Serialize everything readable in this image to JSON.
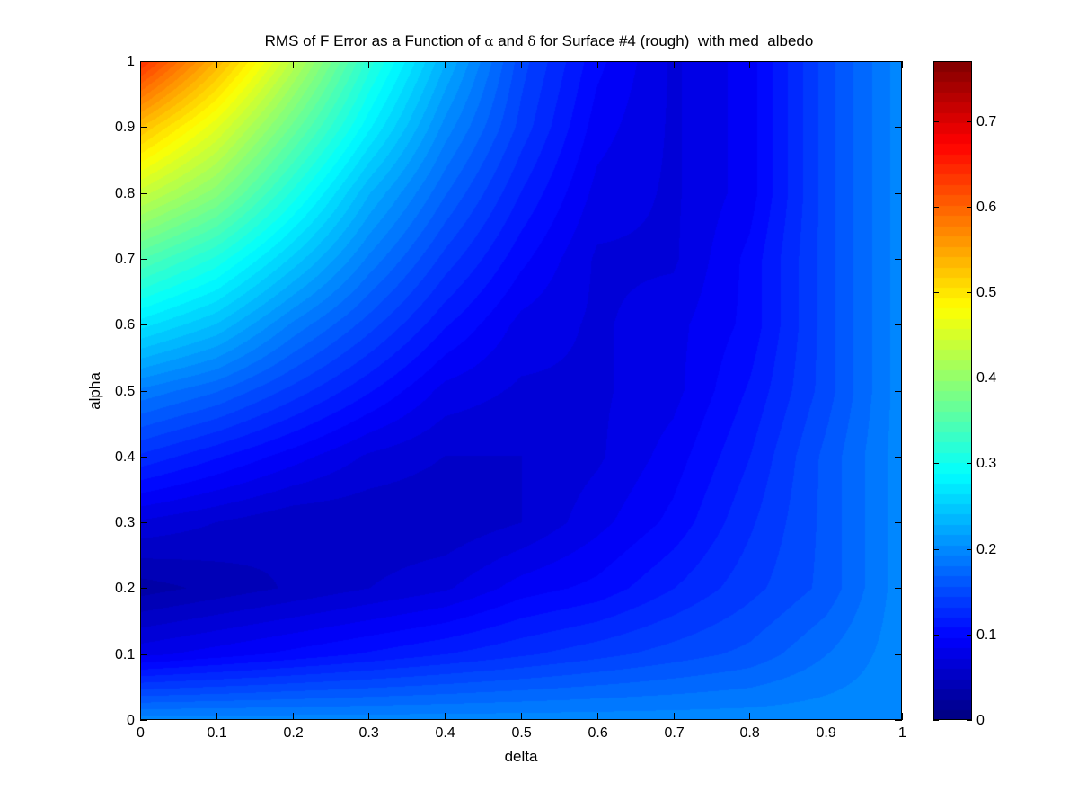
{
  "chart_data": {
    "type": "heatmap",
    "title_parts": [
      "RMS of F Error as a Function of ",
      "α",
      " and ",
      "δ",
      " for Surface #4 (rough)  with med  albedo"
    ],
    "xlabel": "delta",
    "ylabel": "alpha",
    "xlim": [
      0,
      1
    ],
    "ylim": [
      0,
      1
    ],
    "x_ticks": [
      "0",
      "0.1",
      "0.2",
      "0.3",
      "0.4",
      "0.5",
      "0.6",
      "0.7",
      "0.8",
      "0.9",
      "1"
    ],
    "y_ticks": [
      "0",
      "0.1",
      "0.2",
      "0.3",
      "0.4",
      "0.5",
      "0.6",
      "0.7",
      "0.8",
      "0.9",
      "1"
    ],
    "colormap": "jet",
    "color_levels": 64,
    "colorbar": {
      "clim": [
        0,
        0.77
      ],
      "ticks": [
        "0",
        "0.1",
        "0.2",
        "0.3",
        "0.4",
        "0.5",
        "0.6",
        "0.7"
      ],
      "tick_values": [
        0,
        0.1,
        0.2,
        0.3,
        0.4,
        0.5,
        0.6,
        0.7
      ]
    },
    "surface_samples": {
      "alpha": [
        0,
        0.1,
        0.2,
        0.3,
        0.4,
        0.5,
        0.6,
        0.7,
        0.8,
        0.9,
        1.0
      ],
      "delta": [
        0,
        0.1,
        0.2,
        0.3,
        0.4,
        0.5,
        0.6,
        0.7,
        0.8,
        0.9,
        1.0
      ],
      "rms": [
        [
          0.2,
          0.2,
          0.2,
          0.2,
          0.2,
          0.2,
          0.2,
          0.2,
          0.2,
          0.2,
          0.2
        ],
        [
          0.08,
          0.09,
          0.1,
          0.11,
          0.12,
          0.13,
          0.14,
          0.15,
          0.16,
          0.18,
          0.2
        ],
        [
          0.03,
          0.04,
          0.05,
          0.06,
          0.07,
          0.09,
          0.1,
          0.12,
          0.14,
          0.16,
          0.2
        ],
        [
          0.07,
          0.06,
          0.05,
          0.05,
          0.05,
          0.06,
          0.08,
          0.1,
          0.13,
          0.16,
          0.2
        ],
        [
          0.13,
          0.11,
          0.09,
          0.07,
          0.06,
          0.06,
          0.07,
          0.09,
          0.12,
          0.16,
          0.2
        ],
        [
          0.19,
          0.17,
          0.14,
          0.11,
          0.08,
          0.07,
          0.07,
          0.08,
          0.11,
          0.15,
          0.2
        ],
        [
          0.27,
          0.24,
          0.19,
          0.15,
          0.11,
          0.08,
          0.07,
          0.08,
          0.1,
          0.15,
          0.2
        ],
        [
          0.35,
          0.31,
          0.25,
          0.19,
          0.14,
          0.1,
          0.07,
          0.07,
          0.1,
          0.15,
          0.2
        ],
        [
          0.44,
          0.39,
          0.31,
          0.23,
          0.17,
          0.12,
          0.08,
          0.07,
          0.09,
          0.15,
          0.2
        ],
        [
          0.53,
          0.46,
          0.37,
          0.28,
          0.2,
          0.14,
          0.09,
          0.07,
          0.09,
          0.15,
          0.2
        ],
        [
          0.64,
          0.54,
          0.43,
          0.32,
          0.23,
          0.15,
          0.1,
          0.07,
          0.09,
          0.15,
          0.2
        ]
      ]
    }
  }
}
